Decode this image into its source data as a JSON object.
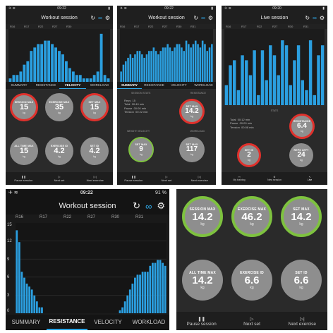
{
  "colors": {
    "accent": "#2fa8e8",
    "bars": "#2b9fe0",
    "ring_red": "#e0312c",
    "ring_green": "#7ec23f",
    "circle": "#8e8e8e",
    "panel": "#2c2c2c"
  },
  "p1": {
    "time": "09:22",
    "title": "Workout session",
    "reps": [
      "R16",
      "R17",
      "R22",
      "R27",
      "R30"
    ],
    "tabs": [
      "SUMMARY",
      "RESISTANCE",
      "VELOCITY",
      "WORKLOAD"
    ],
    "active_tab": 2,
    "circles": [
      {
        "label": "SESSION MAX",
        "value": "15",
        "unit": "kg"
      },
      {
        "label": "EXERCISE MAX",
        "value": "35",
        "unit": "kg"
      },
      {
        "label": "SET MAX",
        "value": "15",
        "unit": "kg"
      },
      {
        "label": "ALL TIME MAX",
        "value": "15",
        "unit": "kg"
      },
      {
        "label": "EXERCISE ID",
        "value": "4.2",
        "unit": "kg"
      },
      {
        "label": "SET ID",
        "value": "4.2",
        "unit": "kg"
      }
    ],
    "footer": [
      "Pause session",
      "Next set",
      "Next exercise"
    ]
  },
  "p2": {
    "time": "09:22",
    "title": "Workout session",
    "reps": [
      "R16",
      "R17",
      "R22",
      "R27",
      "R30",
      "R31"
    ],
    "tabs": [
      "SUMMARY",
      "RESISTANCE",
      "VELOCITY",
      "WORKLOAD"
    ],
    "active_tab": 0,
    "section1": "SESSION STATS",
    "section2": "RESISTANCE",
    "stats": [
      [
        "Reps",
        "15",
        ""
      ],
      [
        "Total",
        "00:40",
        "min"
      ],
      [
        "Pause",
        "00:00",
        "min"
      ],
      [
        "Tension",
        "00:22",
        "min"
      ]
    ],
    "circles": [
      {
        "label": "SET MAX",
        "value": "14.2",
        "unit": "kg"
      },
      {
        "label": "SET MAX",
        "value": "9",
        "unit": "kg"
      },
      {
        "label": "SET MAX",
        "value": "117",
        "unit": "kg"
      }
    ],
    "section3": "WEIGHT VELOCITY",
    "section4": "WORKLOAD",
    "footer": [
      "Pause session",
      "Next set",
      "Next exercise"
    ]
  },
  "p3": {
    "time": "09:20",
    "title": "Live session",
    "reps": [
      "R16",
      "R17",
      "R22",
      "R27",
      "R30",
      "R31"
    ],
    "section1": "STATS",
    "stats": [
      [
        "Total",
        "00:12",
        "min"
      ],
      [
        "Pause",
        "00:00",
        "min"
      ],
      [
        "Tension",
        "00:08",
        "min"
      ]
    ],
    "circles": [
      {
        "label": "RESISTANCE",
        "value": "6.4",
        "unit": "kg"
      },
      {
        "label": "SET ID",
        "value": "2",
        "unit": "kg"
      },
      {
        "label": "REPS LEFT",
        "value": "24",
        "unit": "kg"
      }
    ],
    "footer": [
      "My training",
      "New session",
      "Live"
    ]
  },
  "p4": {
    "time": "09:22",
    "battery": "91 %",
    "title": "Workout session",
    "reps": [
      "R16",
      "R17",
      "R22",
      "R27",
      "R30",
      "R31"
    ],
    "yticks": [
      "15",
      "12",
      "9",
      "6",
      "3",
      "0"
    ],
    "tabs": [
      "SUMMARY",
      "RESISTANCE",
      "VELOCITY",
      "WORKLOAD"
    ],
    "active_tab": 1
  },
  "p5": {
    "circles": [
      {
        "label": "SESSION MAX",
        "value": "14.2",
        "unit": "kg"
      },
      {
        "label": "EXERCISE MAX",
        "value": "46.2",
        "unit": "kg"
      },
      {
        "label": "SET MAX",
        "value": "14.2",
        "unit": "kg"
      },
      {
        "label": "ALL TIME MAX",
        "value": "14.2",
        "unit": "kg"
      },
      {
        "label": "EXERCISE ID",
        "value": "6.6",
        "unit": "kg"
      },
      {
        "label": "SET ID",
        "value": "6.6",
        "unit": "kg"
      }
    ],
    "footer": [
      "Pause session",
      "Next set",
      "Next exercise"
    ]
  },
  "chart_data": [
    {
      "type": "bar",
      "ylim": [
        0,
        15
      ],
      "values": [
        1,
        2,
        2,
        3,
        5,
        6,
        9,
        10,
        11,
        11,
        12,
        12,
        11,
        10,
        9,
        8,
        6,
        4,
        3,
        2,
        2,
        1,
        1,
        1,
        2,
        3,
        14,
        2,
        1
      ]
    },
    {
      "type": "bar",
      "ylim": [
        0,
        15
      ],
      "values": [
        3,
        5,
        6,
        7,
        8,
        7,
        8,
        9,
        9,
        8,
        7,
        8,
        9,
        9,
        10,
        9,
        8,
        9,
        10,
        10,
        11,
        10,
        9,
        10,
        11,
        11,
        10,
        9,
        12,
        11,
        10,
        11,
        12,
        11,
        10,
        12,
        11,
        9,
        10,
        11
      ]
    },
    {
      "type": "bar",
      "ylim": [
        0,
        15
      ],
      "values": [
        4,
        8,
        9,
        3,
        10,
        9,
        6,
        11,
        2,
        11,
        5,
        12,
        10,
        6,
        13,
        12,
        4,
        9,
        12,
        5,
        3,
        13,
        2,
        10,
        12
      ]
    },
    {
      "type": "bar",
      "ylim": [
        0,
        15
      ],
      "values": [
        14,
        12,
        7,
        6,
        5,
        4.5,
        4,
        3,
        2,
        1,
        1,
        0,
        0,
        0,
        0,
        0,
        0,
        0,
        0,
        0,
        0,
        0,
        0,
        0,
        0,
        0,
        0,
        0,
        0,
        0,
        0,
        0,
        0,
        0,
        0,
        0,
        0,
        0,
        0,
        0,
        0,
        0.5,
        1,
        2,
        3,
        4,
        5,
        6,
        6.5,
        6.5,
        7,
        7,
        7,
        8,
        8.5,
        8.5,
        9,
        9,
        8.5,
        8
      ]
    }
  ]
}
